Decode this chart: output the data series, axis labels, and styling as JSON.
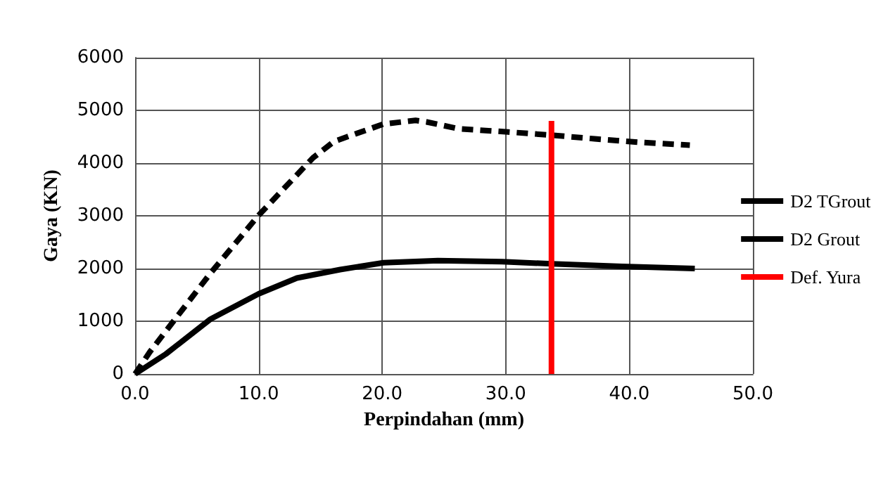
{
  "chart_data": {
    "type": "line",
    "xlabel": "Perpindahan (mm)",
    "ylabel": "Gaya (KN)",
    "xlim": [
      0,
      50
    ],
    "xticks": [
      {
        "value": 0,
        "label": "0.0"
      },
      {
        "value": 10,
        "label": "10.0"
      },
      {
        "value": 20,
        "label": "20.0"
      },
      {
        "value": 30,
        "label": "30.0"
      },
      {
        "value": 40,
        "label": "40.0"
      },
      {
        "value": 50,
        "label": "50.0"
      }
    ],
    "ylim": [
      0,
      6000
    ],
    "yticks": [
      0,
      1000,
      2000,
      3000,
      4000,
      5000,
      6000
    ],
    "grid": true,
    "legend": "right",
    "marker": "none",
    "series": [
      {
        "name": "D2 TGrout",
        "color": "#000000",
        "line_style": "solid",
        "x": [
          0,
          2.5,
          6.1,
          10,
          13.1,
          16.6,
          20.1,
          24.5,
          29.7,
          33.7,
          39.4,
          45.3
        ],
        "values": [
          0,
          380,
          1040,
          1520,
          1820,
          1980,
          2110,
          2150,
          2130,
          2090,
          2040,
          2000
        ]
      },
      {
        "name": "D2 Grout",
        "color": "#000000",
        "line_style": "dashed",
        "x": [
          0,
          1.2,
          6.1,
          10,
          14.4,
          16.1,
          20.1,
          22.7,
          23.6,
          26.2,
          30.2,
          33.7,
          37.2,
          41.1,
          44.9
        ],
        "values": [
          0,
          420,
          1910,
          3010,
          4100,
          4410,
          4740,
          4810,
          4780,
          4650,
          4590,
          4530,
          4460,
          4390,
          4340
        ]
      },
      {
        "name": "Def. Yura",
        "color": "#ff0000",
        "line_style": "solid",
        "x": [
          33.7,
          33.7
        ],
        "values": [
          0,
          4800
        ]
      }
    ]
  }
}
